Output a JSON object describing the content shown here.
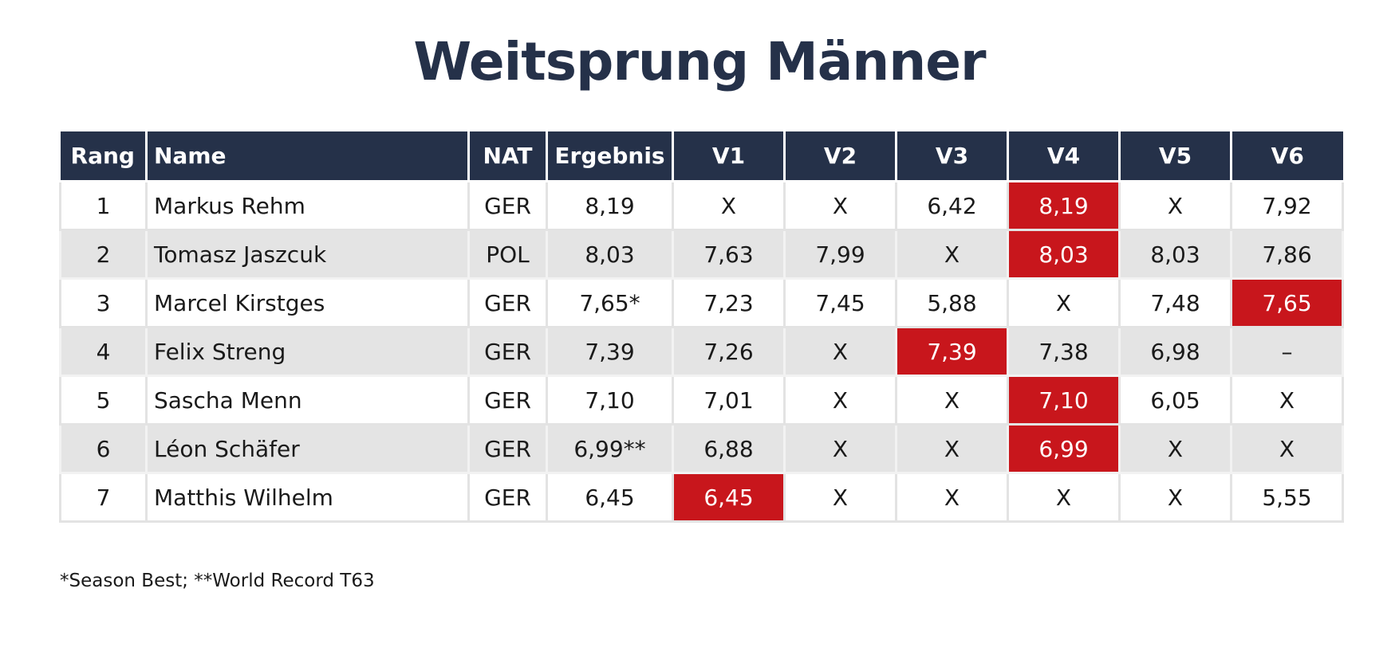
{
  "title": "Weitsprung Männer",
  "colors": {
    "header_bg": "#253149",
    "best_attempt": "#c8161c",
    "row_alt": "#e4e4e4",
    "title": "#253149"
  },
  "headers": [
    "Rang",
    "Name",
    "NAT",
    "Ergebnis",
    "V1",
    "V2",
    "V3",
    "V4",
    "V5",
    "V6"
  ],
  "rows": [
    {
      "rang": "1",
      "name": "Markus Rehm",
      "nat": "GER",
      "ergebnis": "8,19",
      "attempts": [
        "X",
        "X",
        "6,42",
        "8,19",
        "X",
        "7,92"
      ],
      "best_index": 3
    },
    {
      "rang": "2",
      "name": "Tomasz Jaszcuk",
      "nat": "POL",
      "ergebnis": "8,03",
      "attempts": [
        "7,63",
        "7,99",
        "X",
        "8,03",
        "8,03",
        "7,86"
      ],
      "best_index": 3
    },
    {
      "rang": "3",
      "name": "Marcel Kirstges",
      "nat": "GER",
      "ergebnis": "7,65*",
      "attempts": [
        "7,23",
        "7,45",
        "5,88",
        "X",
        "7,48",
        "7,65"
      ],
      "best_index": 5
    },
    {
      "rang": "4",
      "name": "Felix Streng",
      "nat": "GER",
      "ergebnis": "7,39",
      "attempts": [
        "7,26",
        "X",
        "7,39",
        "7,38",
        "6,98",
        "–"
      ],
      "best_index": 2
    },
    {
      "rang": "5",
      "name": "Sascha Menn",
      "nat": "GER",
      "ergebnis": "7,10",
      "attempts": [
        "7,01",
        "X",
        "X",
        "7,10",
        "6,05",
        "X"
      ],
      "best_index": 3
    },
    {
      "rang": "6",
      "name": "Léon Schäfer",
      "nat": "GER",
      "ergebnis": "6,99**",
      "attempts": [
        "6,88",
        "X",
        "X",
        "6,99",
        "X",
        "X"
      ],
      "best_index": 3
    },
    {
      "rang": "7",
      "name": "Matthis Wilhelm",
      "nat": "GER",
      "ergebnis": "6,45",
      "attempts": [
        "6,45",
        "X",
        "X",
        "X",
        "X",
        "5,55"
      ],
      "best_index": 0
    }
  ],
  "footnote": "*Season Best; **World Record T63"
}
